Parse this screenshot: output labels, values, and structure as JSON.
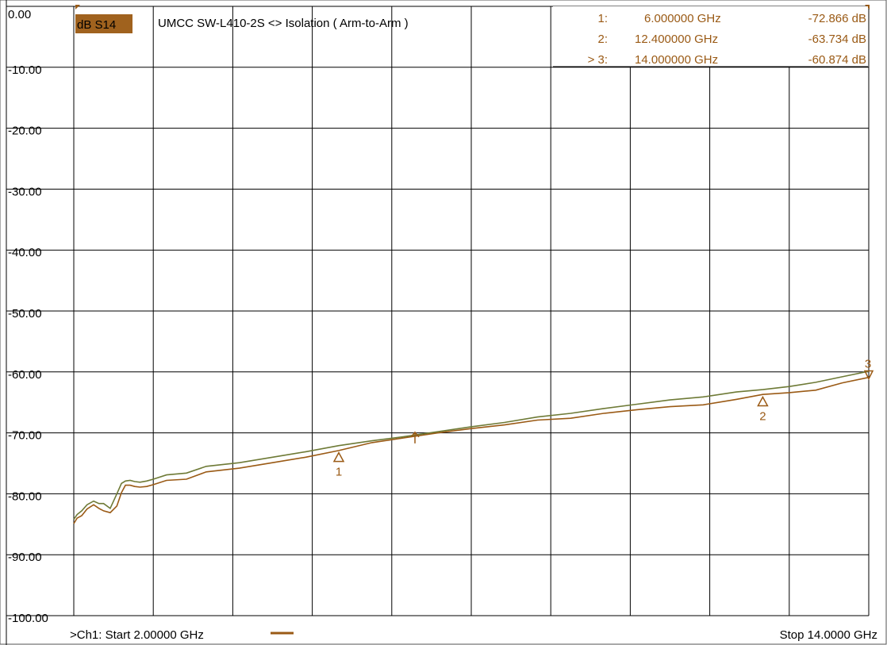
{
  "chart_data": {
    "type": "line",
    "trace_label": "dB S14",
    "title": "UMCC  SW-L410-2S <> Isolation ( Arm-to-Arm )",
    "xlim": [
      2.0,
      14.0
    ],
    "ylim": [
      -100,
      0
    ],
    "x_divisions": 10,
    "y_divisions": 10,
    "y_ticks": [
      "0.00",
      "-10.00",
      "-20.00",
      "-30.00",
      "-40.00",
      "-50.00",
      "-60.00",
      "-70.00",
      "-80.00",
      "-90.00",
      "-100.00"
    ],
    "start_label": ">Ch1: Start  2.00000 GHz",
    "stop_label": "Stop  14.0000 GHz",
    "colors": {
      "trace": "#9a5a15",
      "memory": "#6e7a36",
      "grid": "#000000",
      "marker_text": "#9a5a15",
      "trace_badge": "#a0621e"
    },
    "grid": true,
    "markers": [
      {
        "index_label": "1:",
        "freq": "6.000000 GHz",
        "value": "-72.866 dB",
        "x": 6.0,
        "y": -72.866,
        "label": "1"
      },
      {
        "index_label": "2:",
        "freq": "12.400000 GHz",
        "value": "-63.734 dB",
        "x": 12.4,
        "y": -63.734,
        "label": "2"
      },
      {
        "index_label": "> 3:",
        "freq": "14.000000 GHz",
        "value": "-60.874 dB",
        "x": 14.0,
        "y": -60.874,
        "label": "3"
      }
    ],
    "reference_marker_x": 7.15,
    "series": [
      {
        "x": [
          2.0,
          2.05,
          2.12,
          2.2,
          2.3,
          2.38,
          2.45,
          2.55,
          2.65,
          2.72,
          2.78,
          2.85,
          2.92,
          3.0,
          3.1,
          3.2,
          3.4,
          3.7,
          4.0,
          4.5,
          5.0,
          5.5,
          6.0,
          6.5,
          7.0,
          7.5,
          8.0,
          8.5,
          9.0,
          9.5,
          10.0,
          10.5,
          11.0,
          11.5,
          12.0,
          12.4,
          12.8,
          13.2,
          13.6,
          14.0
        ],
        "y": [
          -84.9,
          -84.0,
          -83.6,
          -82.5,
          -81.8,
          -82.4,
          -82.8,
          -83.1,
          -82.0,
          -79.8,
          -78.6,
          -78.6,
          -78.8,
          -78.9,
          -78.8,
          -78.5,
          -77.8,
          -77.6,
          -76.4,
          -75.8,
          -74.9,
          -74.0,
          -72.9,
          -71.6,
          -70.8,
          -70.0,
          -69.3,
          -68.7,
          -67.9,
          -67.6,
          -66.8,
          -66.2,
          -65.7,
          -65.4,
          -64.5,
          -63.7,
          -63.4,
          -63.0,
          -61.8,
          -60.9
        ]
      },
      {
        "x": [
          2.0,
          2.05,
          2.12,
          2.2,
          2.3,
          2.38,
          2.45,
          2.55,
          2.65,
          2.72,
          2.78,
          2.85,
          2.92,
          3.0,
          3.1,
          3.2,
          3.4,
          3.7,
          4.0,
          4.5,
          5.0,
          5.5,
          6.0,
          6.5,
          7.0,
          7.5,
          8.0,
          8.5,
          9.0,
          9.5,
          10.0,
          10.5,
          11.0,
          11.5,
          12.0,
          12.4,
          12.8,
          13.2,
          13.6,
          14.0
        ],
        "y": [
          -84.2,
          -83.4,
          -82.8,
          -81.8,
          -81.2,
          -81.6,
          -81.6,
          -82.4,
          -80.0,
          -78.3,
          -77.9,
          -77.8,
          -78.0,
          -78.1,
          -77.9,
          -77.6,
          -76.9,
          -76.6,
          -75.5,
          -74.9,
          -74.0,
          -73.1,
          -72.1,
          -71.3,
          -70.6,
          -69.8,
          -69.0,
          -68.3,
          -67.4,
          -66.8,
          -66.0,
          -65.3,
          -64.6,
          -64.1,
          -63.3,
          -62.9,
          -62.4,
          -61.7,
          -60.8,
          -59.9
        ]
      }
    ]
  }
}
